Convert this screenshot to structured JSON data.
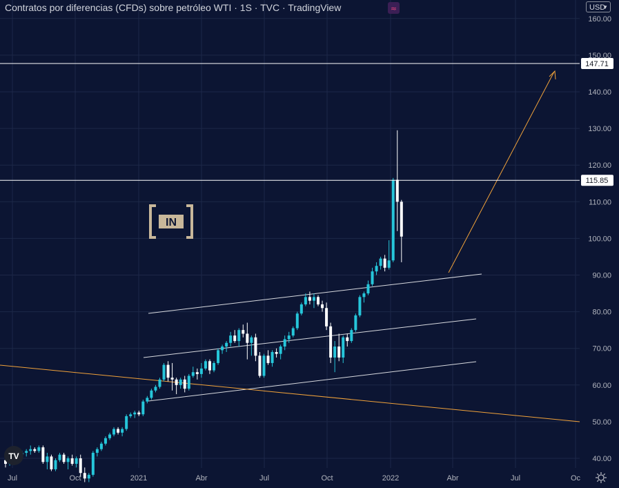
{
  "header": {
    "title": "Contratos por diferencias (CFDs) sobre petróleo WTI · 1S · TVC · TradingView",
    "badge_icon": "tilde-approx-icon"
  },
  "currency": {
    "label": "USD"
  },
  "price_axis": {
    "ticks": [
      "160.00",
      "150.00",
      "140.00",
      "130.00",
      "120.00",
      "110.00",
      "100.00",
      "90.00",
      "80.00",
      "70.00",
      "60.00",
      "50.00",
      "40.00"
    ],
    "tick_values": [
      160,
      150,
      140,
      130,
      120,
      110,
      100,
      90,
      80,
      70,
      60,
      50,
      40
    ]
  },
  "time_axis": {
    "labels": [
      "Jul",
      "Oct",
      "2021",
      "Abr",
      "Jul",
      "Oct",
      "2022",
      "Abr",
      "Jul",
      "Oc"
    ]
  },
  "price_tags": {
    "resistance_high": "147.71",
    "resistance_low": "115.85"
  },
  "colors": {
    "background": "#0c1533",
    "up": "#26c6da",
    "down": "#ffffff",
    "orange": "#f2a33a",
    "grid": "#1d2848"
  },
  "chart_data": {
    "type": "candlestick",
    "title": "Contratos por diferencias (CFDs) sobre petróleo WTI · 1S · TVC · TradingView",
    "timeframe": "1S",
    "y_range": [
      37,
      163
    ],
    "x_range_weeks": [
      0,
      130
    ],
    "horizontal_levels": [
      147.71,
      115.85
    ],
    "candles_ohlc": [
      [
        39.5,
        40.5,
        37.5,
        38.5
      ],
      [
        38.5,
        41.0,
        38.0,
        40.5
      ],
      [
        40.5,
        41.5,
        39.0,
        40.0
      ],
      [
        40.0,
        41.5,
        39.5,
        41.0
      ],
      [
        41.0,
        42.0,
        40.0,
        41.5
      ],
      [
        41.5,
        42.5,
        40.5,
        42.0
      ],
      [
        42.0,
        43.5,
        41.0,
        42.5
      ],
      [
        42.5,
        43.0,
        41.5,
        42.0
      ],
      [
        42.0,
        43.5,
        41.5,
        43.0
      ],
      [
        43.0,
        43.5,
        38.5,
        39.0
      ],
      [
        39.0,
        41.5,
        37.0,
        40.5
      ],
      [
        40.5,
        41.0,
        36.5,
        37.0
      ],
      [
        37.0,
        40.0,
        36.5,
        39.5
      ],
      [
        39.5,
        41.5,
        39.0,
        41.0
      ],
      [
        41.0,
        41.5,
        38.5,
        39.0
      ],
      [
        39.0,
        40.5,
        37.0,
        40.0
      ],
      [
        40.0,
        41.0,
        38.0,
        38.5
      ],
      [
        38.5,
        40.5,
        37.5,
        40.0
      ],
      [
        40.0,
        41.0,
        35.0,
        36.0
      ],
      [
        36.0,
        37.5,
        33.5,
        34.5
      ],
      [
        34.5,
        36.0,
        33.5,
        35.5
      ],
      [
        35.5,
        42.0,
        35.0,
        41.5
      ],
      [
        41.5,
        43.0,
        40.5,
        42.5
      ],
      [
        42.5,
        44.5,
        42.0,
        44.0
      ],
      [
        44.0,
        46.0,
        43.5,
        45.5
      ],
      [
        45.5,
        47.0,
        45.0,
        46.5
      ],
      [
        46.5,
        48.5,
        46.0,
        48.0
      ],
      [
        48.0,
        48.5,
        46.5,
        47.0
      ],
      [
        47.0,
        48.5,
        46.0,
        48.0
      ],
      [
        48.0,
        52.0,
        47.5,
        51.5
      ],
      [
        51.5,
        52.5,
        51.0,
        52.0
      ],
      [
        52.0,
        53.0,
        51.0,
        52.5
      ],
      [
        52.5,
        53.0,
        51.5,
        52.0
      ],
      [
        52.0,
        56.0,
        51.5,
        55.5
      ],
      [
        55.5,
        57.0,
        55.0,
        56.5
      ],
      [
        56.5,
        59.0,
        56.0,
        58.5
      ],
      [
        58.5,
        60.0,
        58.0,
        59.5
      ],
      [
        59.5,
        62.0,
        59.0,
        61.5
      ],
      [
        61.5,
        66.0,
        61.0,
        65.5
      ],
      [
        65.5,
        66.5,
        61.0,
        62.0
      ],
      [
        62.0,
        66.0,
        58.5,
        61.5
      ],
      [
        61.5,
        62.0,
        57.5,
        60.0
      ],
      [
        60.0,
        62.0,
        59.0,
        61.5
      ],
      [
        61.5,
        62.5,
        58.0,
        59.0
      ],
      [
        59.0,
        63.0,
        58.5,
        62.5
      ],
      [
        62.5,
        65.0,
        62.0,
        63.5
      ],
      [
        63.5,
        64.5,
        61.5,
        63.0
      ],
      [
        63.0,
        66.0,
        62.0,
        64.5
      ],
      [
        64.5,
        67.0,
        64.0,
        66.5
      ],
      [
        66.5,
        67.0,
        63.0,
        64.0
      ],
      [
        64.0,
        66.5,
        63.5,
        66.0
      ],
      [
        66.0,
        70.0,
        65.5,
        69.5
      ],
      [
        69.5,
        71.0,
        68.5,
        70.5
      ],
      [
        70.5,
        72.0,
        69.0,
        71.5
      ],
      [
        71.5,
        74.5,
        70.5,
        73.5
      ],
      [
        73.5,
        75.0,
        71.5,
        72.0
      ],
      [
        72.0,
        75.5,
        70.5,
        75.0
      ],
      [
        75.0,
        76.5,
        73.0,
        74.0
      ],
      [
        74.0,
        77.0,
        67.0,
        71.5
      ],
      [
        71.5,
        73.5,
        68.0,
        73.0
      ],
      [
        73.0,
        74.0,
        66.5,
        68.0
      ],
      [
        68.0,
        69.0,
        62.0,
        62.5
      ],
      [
        62.5,
        68.5,
        62.0,
        68.0
      ],
      [
        68.0,
        69.5,
        65.5,
        66.0
      ],
      [
        66.0,
        69.5,
        65.0,
        69.0
      ],
      [
        69.0,
        70.0,
        67.5,
        68.5
      ],
      [
        68.5,
        71.0,
        67.0,
        70.5
      ],
      [
        70.5,
        73.5,
        69.5,
        72.5
      ],
      [
        72.5,
        74.5,
        71.5,
        73.5
      ],
      [
        73.5,
        76.0,
        73.0,
        75.5
      ],
      [
        75.5,
        80.0,
        75.0,
        79.5
      ],
      [
        79.5,
        82.5,
        79.0,
        82.0
      ],
      [
        82.0,
        85.0,
        81.5,
        84.0
      ],
      [
        84.0,
        85.5,
        82.0,
        83.0
      ],
      [
        83.0,
        85.0,
        81.0,
        84.0
      ],
      [
        84.0,
        84.5,
        81.5,
        82.0
      ],
      [
        82.0,
        83.0,
        80.0,
        81.0
      ],
      [
        81.0,
        82.5,
        75.0,
        76.0
      ],
      [
        76.0,
        77.0,
        66.0,
        67.5
      ],
      [
        67.5,
        72.0,
        63.5,
        70.5
      ],
      [
        70.5,
        74.0,
        66.5,
        67.5
      ],
      [
        67.5,
        73.5,
        66.0,
        73.0
      ],
      [
        73.0,
        74.0,
        70.5,
        72.0
      ],
      [
        72.0,
        75.5,
        71.5,
        75.0
      ],
      [
        75.0,
        79.5,
        74.5,
        79.0
      ],
      [
        79.0,
        84.5,
        78.5,
        84.0
      ],
      [
        84.0,
        85.5,
        82.5,
        85.0
      ],
      [
        85.0,
        88.5,
        84.5,
        87.5
      ],
      [
        87.5,
        92.0,
        87.0,
        91.0
      ],
      [
        91.0,
        93.5,
        90.0,
        92.5
      ],
      [
        92.5,
        95.0,
        91.5,
        94.5
      ],
      [
        94.5,
        95.5,
        91.0,
        92.0
      ],
      [
        92.0,
        99.5,
        91.5,
        94.0
      ],
      [
        94.0,
        116.5,
        93.5,
        116.0
      ],
      [
        116.0,
        129.5,
        102.0,
        110.0
      ],
      [
        110.0,
        110.5,
        93.5,
        100.5
      ]
    ],
    "annotations": [
      "ascending channel (parallel white trend lines)",
      "descending orange trend line",
      "orange arrow projecting toward 147.71"
    ]
  }
}
